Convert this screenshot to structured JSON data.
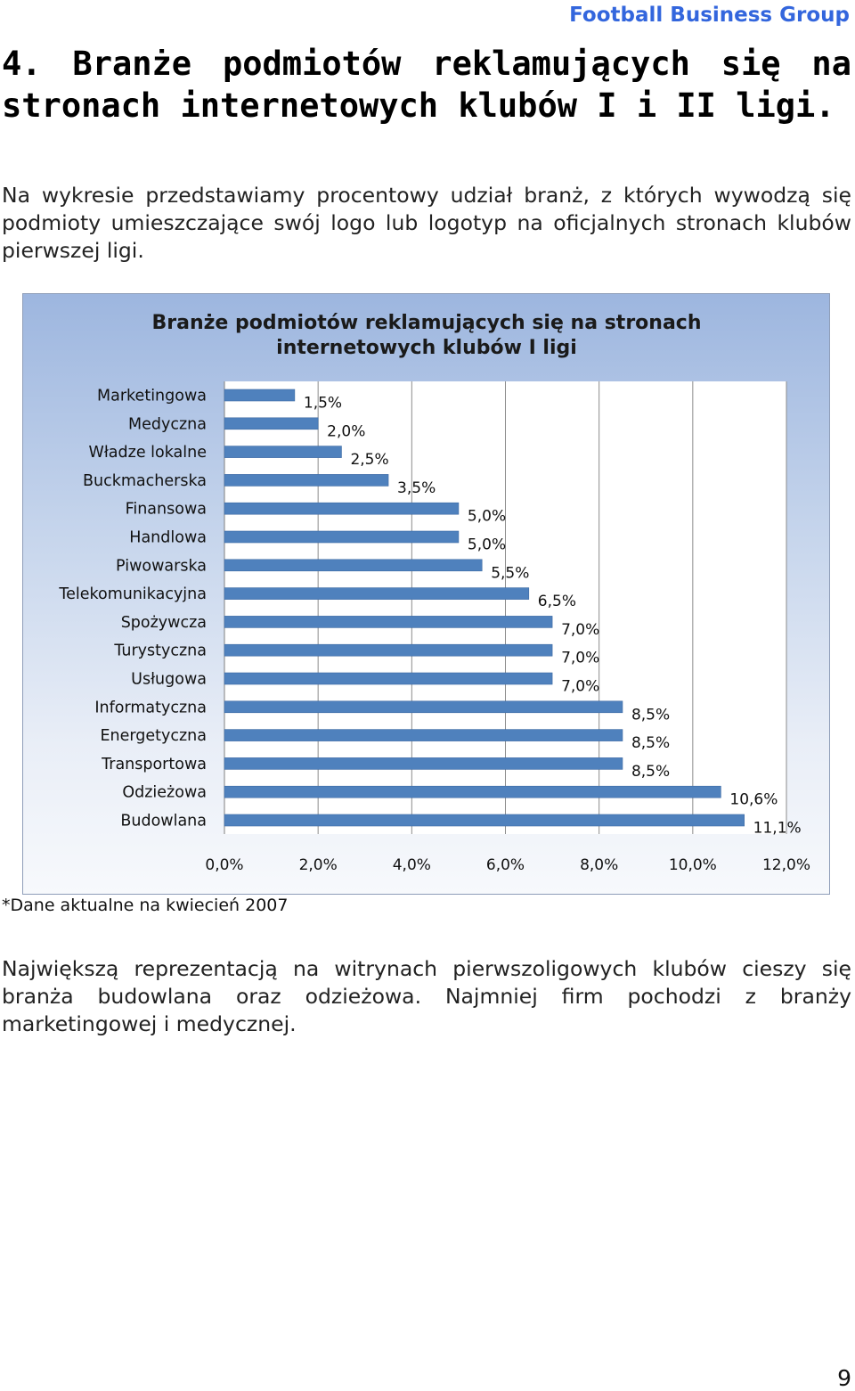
{
  "header": {
    "brand": "Football Business Group"
  },
  "section": {
    "title": "4. Branże podmiotów reklamujących się na stronach internetowych klubów I i II ligi."
  },
  "intro": {
    "text": "Na wykresie przedstawiamy procentowy udział branż, z których wywodzą się podmioty umieszczające swój logo lub logotyp  na oficjalnych stronach klubów pierwszej ligi."
  },
  "chart_data": {
    "type": "bar",
    "orientation": "horizontal",
    "title_lines": [
      "Branże podmiotów reklamujących się na stronach",
      "internetowych klubów I ligi"
    ],
    "categories": [
      "Marketingowa",
      "Medyczna",
      "Władze lokalne",
      "Buckmacherska",
      "Finansowa",
      "Handlowa",
      "Piwowarska",
      "Telekomunikacyjna",
      "Spożywcza",
      "Turystyczna",
      "Usługowa",
      "Informatyczna",
      "Energetyczna",
      "Transportowa",
      "Odzieżowa",
      "Budowlana"
    ],
    "values": [
      1.5,
      2.0,
      2.5,
      3.5,
      5.0,
      5.0,
      5.5,
      6.5,
      7.0,
      7.0,
      7.0,
      8.5,
      8.5,
      8.5,
      10.6,
      11.1
    ],
    "value_labels": [
      "1,5%",
      "2,0%",
      "2,5%",
      "3,5%",
      "5,0%",
      "5,0%",
      "5,5%",
      "6,5%",
      "7,0%",
      "7,0%",
      "7,0%",
      "8,5%",
      "8,5%",
      "8,5%",
      "10,6%",
      "11,1%"
    ],
    "x_ticks": [
      0,
      2,
      4,
      6,
      8,
      10,
      12
    ],
    "x_tick_labels": [
      "0,0%",
      "2,0%",
      "4,0%",
      "6,0%",
      "8,0%",
      "10,0%",
      "12,0%"
    ],
    "xlim": [
      0,
      12
    ],
    "grid": "vertical",
    "bar_color": "#4f81bd"
  },
  "footnote": {
    "text": "*Dane aktualne na kwiecień 2007"
  },
  "summary": {
    "text": "Największą reprezentacją na witrynach pierwszoligowych klubów cieszy się branża budowlana oraz odzieżowa. Najmniej firm pochodzi z branży marketingowej i medycznej."
  },
  "page": {
    "number": "9"
  }
}
